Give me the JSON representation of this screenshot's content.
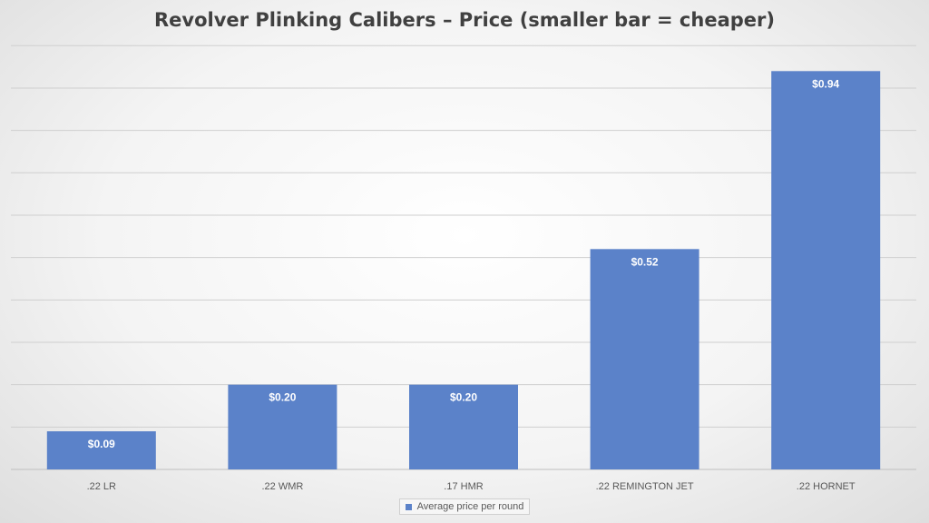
{
  "chart_data": {
    "type": "bar",
    "title": "Revolver Plinking Calibers – Price (smaller bar = cheaper)",
    "categories": [
      ".22 LR",
      ".22 WMR",
      ".17 HMR",
      ".22 REMINGTON JET",
      ".22 HORNET"
    ],
    "series": [
      {
        "name": "Average price per round",
        "values": [
          0.09,
          0.2,
          0.2,
          0.52,
          0.94
        ],
        "data_labels": [
          "$0.09",
          "$0.20",
          "$0.20",
          "$0.52",
          "$0.94"
        ],
        "color": "#5b82c9"
      }
    ],
    "xlabel": "",
    "ylabel": "",
    "ylim": [
      0,
      1.1
    ],
    "grid_step": 0.1,
    "grid": true,
    "legend": "bottom"
  }
}
